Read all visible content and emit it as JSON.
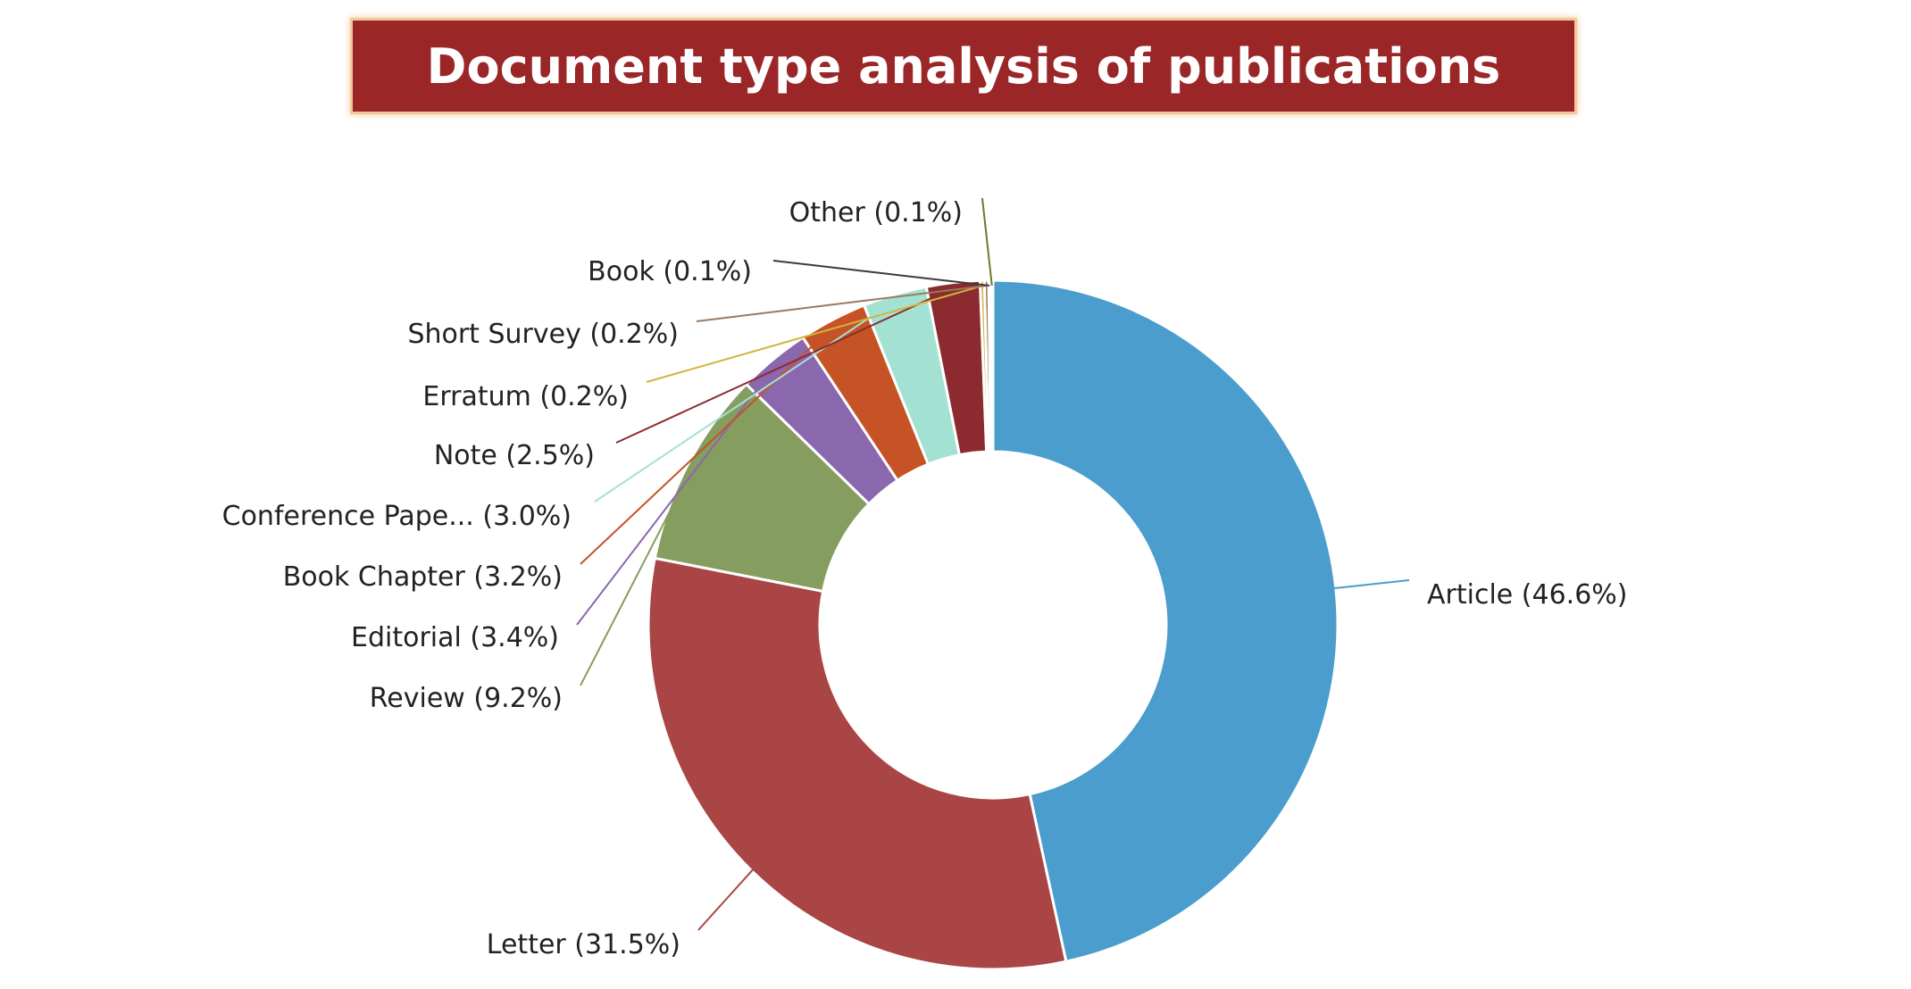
{
  "chart_data": {
    "type": "pie",
    "variant": "donut",
    "title": "Document type analysis of publications",
    "legend": "none",
    "slices": [
      {
        "label": "Article (46.6%)",
        "value": 46.6,
        "color": "#4a9dcc"
      },
      {
        "label": "Letter (31.5%)",
        "value": 31.5,
        "color": "#a94545"
      },
      {
        "label": "Review (9.2%)",
        "value": 9.2,
        "color": "#859d5f"
      },
      {
        "label": "Editorial (3.4%)",
        "value": 3.4,
        "color": "#8b67ae"
      },
      {
        "label": "Book Chapter (3.2%)",
        "value": 3.2,
        "color": "#c55325"
      },
      {
        "label": "Conference Pape... (3.0%)",
        "value": 3.0,
        "color": "#a3e2d2"
      },
      {
        "label": "Note (2.5%)",
        "value": 2.5,
        "color": "#8c2b2f"
      },
      {
        "label": "Erratum (0.2%)",
        "value": 0.2,
        "color": "#d2b43c"
      },
      {
        "label": "Short Survey (0.2%)",
        "value": 0.2,
        "color": "#9a7a60"
      },
      {
        "label": "Book (0.1%)",
        "value": 0.1,
        "color": "#3b3b3b"
      },
      {
        "label": "Other (0.1%)",
        "value": 0.1,
        "color": "#6b7a2a"
      }
    ]
  }
}
